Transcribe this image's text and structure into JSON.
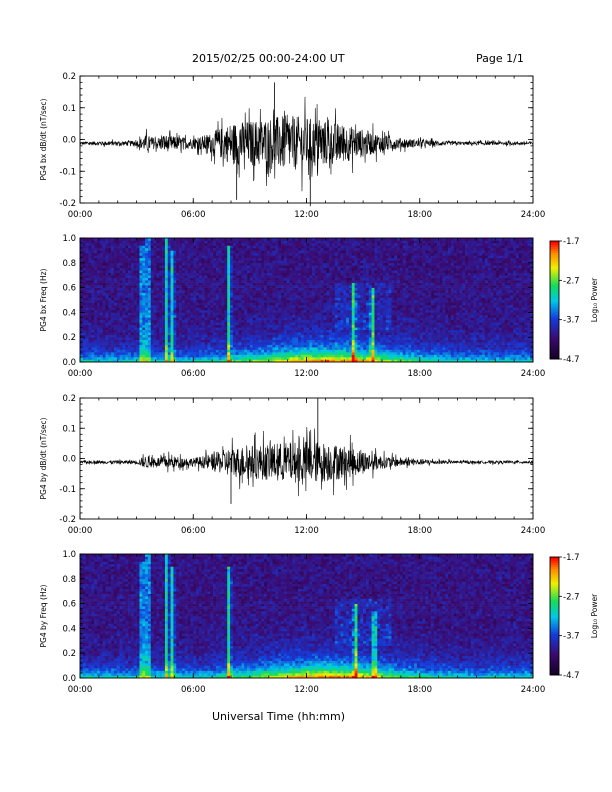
{
  "header": {
    "title": "2015/02/25  00:00-24:00 UT",
    "page": "Page 1/1"
  },
  "xaxis_title": "Universal Time (hh:mm)",
  "chart_data": [
    {
      "type": "line",
      "ylabel": "PG4 bx dB/dt (nT/sec)",
      "xlim": [
        0,
        24
      ],
      "ylim": [
        -0.2,
        0.2
      ],
      "xticks": [
        "00:00",
        "06:00",
        "12:00",
        "18:00",
        "24:00"
      ],
      "yticks": [
        "-0.2",
        "-0.1",
        "0.0",
        "0.1",
        "0.2"
      ],
      "envelope": {
        "hours": [
          0,
          3,
          3.5,
          4,
          4.5,
          5,
          6,
          7,
          8,
          9,
          10,
          11,
          12,
          13,
          14,
          15,
          16,
          17,
          18,
          19,
          20,
          24
        ],
        "amplitude": [
          0.01,
          0.015,
          0.05,
          0.03,
          0.05,
          0.04,
          0.03,
          0.06,
          0.12,
          0.13,
          0.15,
          0.16,
          0.15,
          0.13,
          0.11,
          0.08,
          0.05,
          0.03,
          0.02,
          0.015,
          0.01,
          0.01
        ]
      },
      "peaks": [
        {
          "x": 10.3,
          "y": 0.18
        },
        {
          "x": 12.2,
          "y": -0.21
        },
        {
          "x": 8.3,
          "y": -0.19
        }
      ]
    },
    {
      "type": "heatmap",
      "ylabel": "PG4 bx Freq (Hz)",
      "xlim": [
        0,
        24
      ],
      "ylim": [
        0,
        1.0
      ],
      "xticks": [
        "00:00",
        "06:00",
        "12:00",
        "18:00",
        "24:00"
      ],
      "yticks": [
        "0.0",
        "0.2",
        "0.4",
        "0.6",
        "0.8",
        "1.0"
      ],
      "colorbar": {
        "label": "Log₁₀ Power",
        "ticks": [
          "-1.7",
          "-2.7",
          "-3.7",
          "-4.7"
        ],
        "range": [
          -4.7,
          -1.7
        ]
      },
      "events": [
        {
          "hour": 3.3,
          "fmax": 0.95
        },
        {
          "hour": 3.6,
          "fmax": 1.0
        },
        {
          "hour": 4.6,
          "fmax": 1.0
        },
        {
          "hour": 4.9,
          "fmax": 0.9
        },
        {
          "hour": 7.9,
          "fmax": 0.95
        },
        {
          "hour": 14.5,
          "fmax": 0.65
        },
        {
          "hour": 15.5,
          "fmax": 0.6
        }
      ]
    },
    {
      "type": "line",
      "ylabel": "PG4 by dB/dt (nT/sec)",
      "xlim": [
        0,
        24
      ],
      "ylim": [
        -0.2,
        0.2
      ],
      "xticks": [
        "00:00",
        "06:00",
        "12:00",
        "18:00",
        "24:00"
      ],
      "yticks": [
        "-0.2",
        "-0.1",
        "0.0",
        "0.1",
        "0.2"
      ],
      "envelope": {
        "hours": [
          0,
          3,
          3.5,
          4,
          4.5,
          5,
          6,
          7,
          8,
          9,
          10,
          11,
          12,
          13,
          14,
          15,
          16,
          17,
          18,
          19,
          20,
          24
        ],
        "amplitude": [
          0.008,
          0.012,
          0.04,
          0.025,
          0.04,
          0.035,
          0.025,
          0.05,
          0.09,
          0.1,
          0.11,
          0.12,
          0.13,
          0.12,
          0.1,
          0.07,
          0.04,
          0.025,
          0.018,
          0.012,
          0.008,
          0.008
        ]
      },
      "peaks": [
        {
          "x": 12.6,
          "y": 0.2
        },
        {
          "x": 8.0,
          "y": -0.15
        }
      ]
    },
    {
      "type": "heatmap",
      "ylabel": "PG4 by Freq (Hz)",
      "xlim": [
        0,
        24
      ],
      "ylim": [
        0,
        1.0
      ],
      "xticks": [
        "00:00",
        "06:00",
        "12:00",
        "18:00",
        "24:00"
      ],
      "yticks": [
        "0.0",
        "0.2",
        "0.4",
        "0.6",
        "0.8",
        "1.0"
      ],
      "colorbar": {
        "label": "Log₁₀ Power",
        "ticks": [
          "-1.7",
          "-2.7",
          "-3.7",
          "-4.7"
        ],
        "range": [
          -4.7,
          -1.7
        ]
      },
      "events": [
        {
          "hour": 3.3,
          "fmax": 0.95
        },
        {
          "hour": 3.6,
          "fmax": 1.0
        },
        {
          "hour": 4.6,
          "fmax": 1.0
        },
        {
          "hour": 4.9,
          "fmax": 0.9
        },
        {
          "hour": 7.9,
          "fmax": 0.9
        },
        {
          "hour": 14.6,
          "fmax": 0.6
        },
        {
          "hour": 15.6,
          "fmax": 0.55
        }
      ]
    }
  ]
}
